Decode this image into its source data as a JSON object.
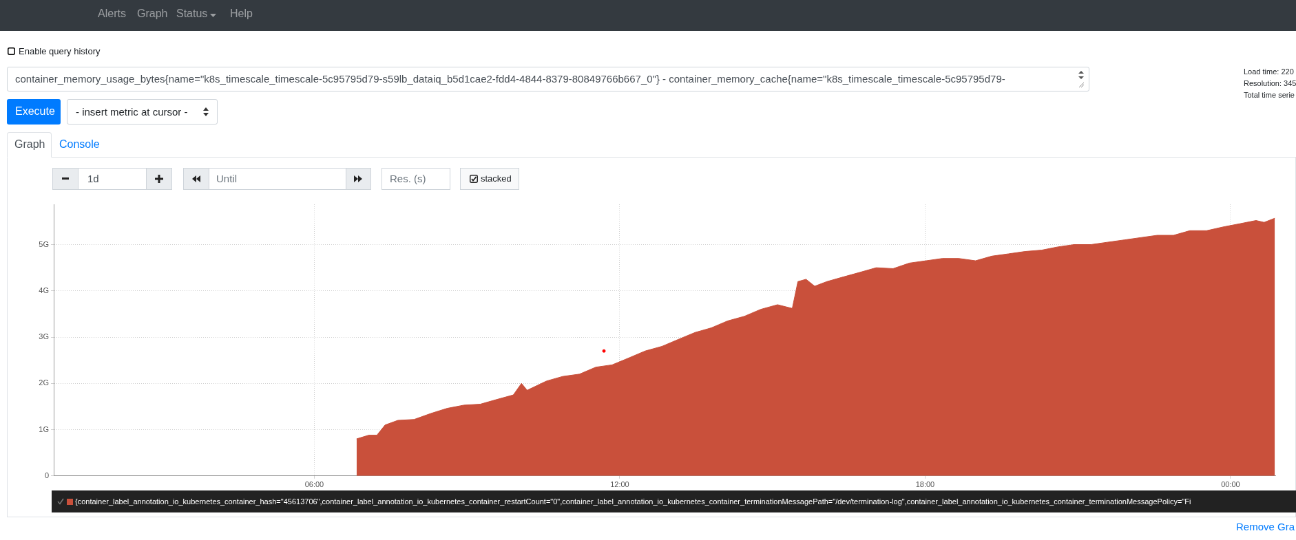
{
  "chart_data": {
    "type": "area",
    "legend": "bottom",
    "grid": true,
    "xlim": [
      0.88,
      24.88
    ],
    "xticks": [
      {
        "value": 6,
        "label": "06:00"
      },
      {
        "value": 12,
        "label": "12:00"
      },
      {
        "value": 18,
        "label": "18:00"
      },
      {
        "value": 24,
        "label": "00:00"
      }
    ],
    "ylim": [
      0,
      5.87
    ],
    "yticks": [
      0,
      {
        "value": 1,
        "label": "1G"
      },
      {
        "value": 2,
        "label": "2G"
      },
      {
        "value": 3,
        "label": "3G"
      },
      {
        "value": 4,
        "label": "4G"
      },
      {
        "value": 5,
        "label": "5G"
      }
    ],
    "series": [
      {
        "name": "{container_label_annotation_io_kubernetes_container_hash=\"45613706\",container_label_annotation_io_kubernetes_container_restartCount=\"0\",container_label_annotation_io_kubernetes_container_terminationMessagePath=\"/dev/termination-log\",container_label_annotation_io_kubernetes_container_terminationMessagePolicy=\"Fi",
        "color": "#c9503b",
        "x": [
          6.83,
          7.07,
          7.23,
          7.39,
          7.64,
          7.96,
          8.29,
          8.61,
          8.94,
          9.26,
          9.58,
          9.91,
          10.07,
          10.18,
          10.56,
          10.88,
          11.21,
          11.53,
          11.85,
          12.18,
          12.5,
          12.83,
          13.15,
          13.48,
          13.8,
          14.12,
          14.45,
          14.77,
          15.1,
          15.39,
          15.5,
          15.66,
          15.83,
          16.07,
          16.39,
          16.72,
          17.04,
          17.37,
          17.69,
          18.02,
          18.34,
          18.66,
          18.99,
          19.31,
          19.64,
          19.96,
          20.29,
          20.61,
          20.93,
          21.26,
          21.58,
          21.91,
          22.23,
          22.56,
          22.88,
          23.2,
          23.53,
          23.85,
          24.18,
          24.5,
          24.66,
          24.87
        ],
        "values": [
          0.8,
          0.88,
          0.88,
          1.1,
          1.2,
          1.22,
          1.35,
          1.46,
          1.53,
          1.55,
          1.65,
          1.75,
          2.0,
          1.85,
          2.05,
          2.15,
          2.2,
          2.35,
          2.4,
          2.55,
          2.7,
          2.8,
          2.95,
          3.1,
          3.2,
          3.35,
          3.45,
          3.6,
          3.7,
          3.62,
          4.2,
          4.25,
          4.1,
          4.2,
          4.3,
          4.4,
          4.5,
          4.48,
          4.6,
          4.65,
          4.7,
          4.7,
          4.65,
          4.75,
          4.8,
          4.85,
          4.88,
          4.95,
          5.0,
          5.0,
          5.05,
          5.1,
          5.15,
          5.2,
          5.2,
          5.3,
          5.3,
          5.38,
          5.45,
          5.52,
          5.48,
          5.57
        ]
      },
      {
        "type": "scatter",
        "color": "#ff0000",
        "x": [
          11.69
        ],
        "values": [
          2.7
        ]
      }
    ],
    "annotations": [
      "Alerts",
      "Graph",
      "Status",
      "Help",
      "Enable query history",
      "container_memory_usage_bytes{name=\"k8s_timescale_timescale-5c95795d79-s59lb_dataiq_b5d1cae2-fdd4-4844-8379-80849766b667_0\"} - container_memory_cache{name=\"k8s_timescale_timescale-5c95795d79-",
      "Execute",
      "- insert metric at cursor -",
      "Graph",
      "Console",
      "1d",
      "Until",
      "Res. (s)",
      "stacked",
      "Load time: 220",
      "Resolution: 345",
      "Total time serie",
      "Remove Gra"
    ]
  }
}
